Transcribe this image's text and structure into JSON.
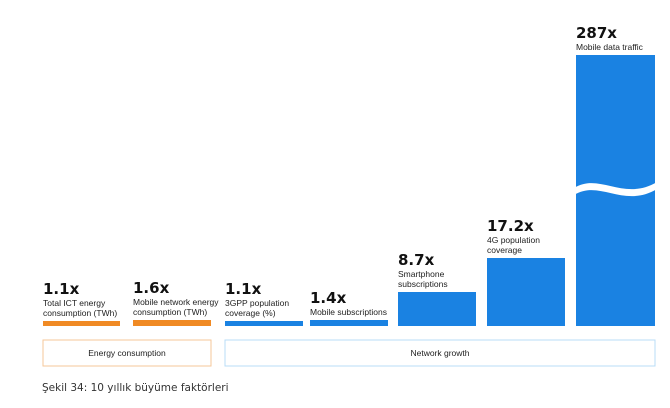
{
  "chart_data": {
    "type": "bar",
    "caption": "Şekil 34: 10 yıllık büyüme faktörleri",
    "unit": "x",
    "categories": [
      {
        "key": "ict",
        "value": 1.1,
        "display": "1.1x",
        "label": [
          "Total ICT energy",
          "consumption (TWh)"
        ],
        "group": "energy"
      },
      {
        "key": "mobile-energy",
        "value": 1.6,
        "display": "1.6x",
        "label": [
          "Mobile network energy",
          "consumption (TWh)"
        ],
        "group": "energy"
      },
      {
        "key": "3gpp",
        "value": 1.1,
        "display": "1.1x",
        "label": [
          "3GPP population",
          "coverage (%)"
        ],
        "group": "network"
      },
      {
        "key": "subs",
        "value": 1.4,
        "display": "1.4x",
        "label": [
          "Mobile subscriptions"
        ],
        "group": "network"
      },
      {
        "key": "smartphone",
        "value": 8.7,
        "display": "8.7x",
        "label": [
          "Smartphone",
          "subscriptions"
        ],
        "group": "network"
      },
      {
        "key": "4g",
        "value": 17.2,
        "display": "17.2x",
        "label": [
          "4G population",
          "coverage"
        ],
        "group": "network"
      },
      {
        "key": "data",
        "value": 287,
        "display": "287x",
        "label": [
          "Mobile data traffic"
        ],
        "group": "network",
        "axis_break": true
      }
    ],
    "groups": [
      {
        "key": "energy",
        "label": "Energy consumption",
        "color": "#f08a24"
      },
      {
        "key": "network",
        "label": "Network growth",
        "color": "#1a82e2"
      }
    ],
    "colors": {
      "energy": "#f08a24",
      "network": "#1a82e2",
      "energy_box": "#f6c79a",
      "network_box": "#b9dcf7"
    }
  }
}
